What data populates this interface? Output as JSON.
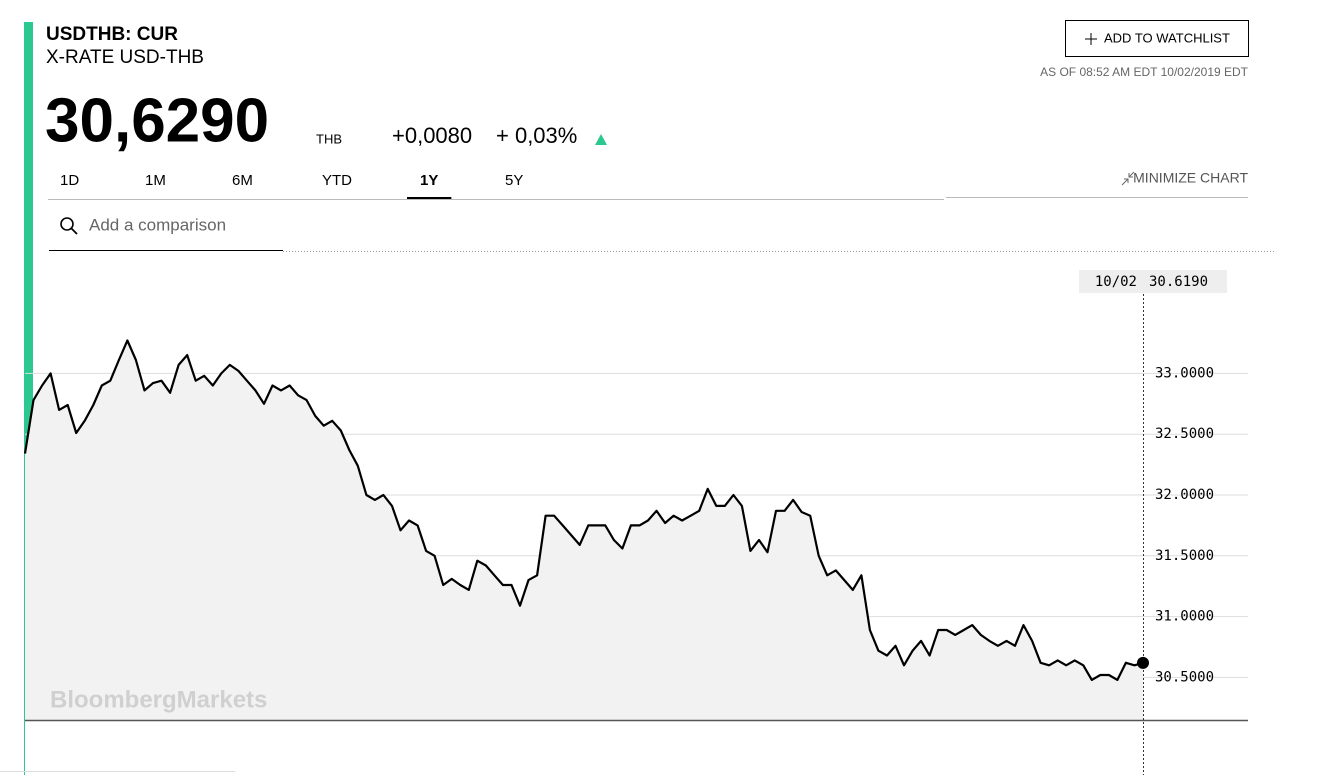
{
  "header": {
    "ticker": "USDTHB: CUR",
    "name": "X-RATE USD-THB",
    "price": "30,6290",
    "currency": "THB",
    "change": "+0,0080",
    "change_pct": "+ 0,03%",
    "watchlist_button": "ADD TO WATCHLIST",
    "as_of": "AS OF 08:52 AM EDT 10/02/2019 EDT"
  },
  "tabs": [
    "1D",
    "1M",
    "6M",
    "YTD",
    "1Y",
    "5Y"
  ],
  "active_tab": 4,
  "minimize": "MINIMIZE CHART",
  "search_placeholder": "Add a comparison",
  "watermark": "BloombergMarkets",
  "chart_data": {
    "type": "line",
    "crosshair": {
      "date": "10/02",
      "value": "30.6190"
    },
    "series": [
      {
        "color": "#000000",
        "values": [
          32.34,
          32.78,
          32.9,
          33.0,
          32.7,
          32.74,
          32.51,
          32.61,
          32.74,
          32.9,
          32.94,
          33.11,
          33.27,
          33.11,
          32.86,
          32.92,
          32.94,
          32.84,
          33.07,
          33.15,
          32.94,
          32.98,
          32.9,
          33.0,
          33.07,
          33.02,
          32.94,
          32.86,
          32.75,
          32.9,
          32.86,
          32.9,
          32.82,
          32.78,
          32.65,
          32.57,
          32.61,
          32.53,
          32.37,
          32.24,
          32.0,
          31.96,
          32.0,
          31.91,
          31.71,
          31.79,
          31.75,
          31.54,
          31.5,
          31.26,
          31.31,
          31.26,
          31.22,
          31.46,
          31.42,
          31.34,
          31.26,
          31.26,
          31.09,
          31.3,
          31.34,
          31.83,
          31.83,
          31.75,
          31.67,
          31.59,
          31.75,
          31.75,
          31.75,
          31.63,
          31.56,
          31.75,
          31.75,
          31.79,
          31.87,
          31.77,
          31.83,
          31.79,
          31.83,
          31.87,
          32.05,
          31.91,
          31.91,
          32.0,
          31.91,
          31.54,
          31.63,
          31.53,
          31.87,
          31.87,
          31.96,
          31.86,
          31.83,
          31.5,
          31.34,
          31.38,
          31.3,
          31.22,
          31.34,
          30.89,
          30.72,
          30.68,
          30.76,
          30.6,
          30.72,
          30.8,
          30.68,
          30.89,
          30.89,
          30.85,
          30.89,
          30.93,
          30.85,
          30.8,
          30.76,
          30.8,
          30.76,
          30.93,
          30.8,
          30.62,
          30.6,
          30.64,
          30.6,
          30.64,
          30.6,
          30.48,
          30.52,
          30.52,
          30.48,
          30.62,
          30.6,
          30.62
        ]
      }
    ],
    "ylim": [
      30.15,
      33.85
    ],
    "yticks": [
      {
        "value": 30.5,
        "label": "30.5000"
      },
      {
        "value": 31,
        "label": "31.0000"
      },
      {
        "value": 31.5,
        "label": "31.5000"
      },
      {
        "value": 32,
        "label": "32.0000"
      },
      {
        "value": 32.5,
        "label": "32.5000"
      },
      {
        "value": 33,
        "label": "33.0000"
      }
    ],
    "grid": true,
    "fill": "#f2f2f2"
  }
}
